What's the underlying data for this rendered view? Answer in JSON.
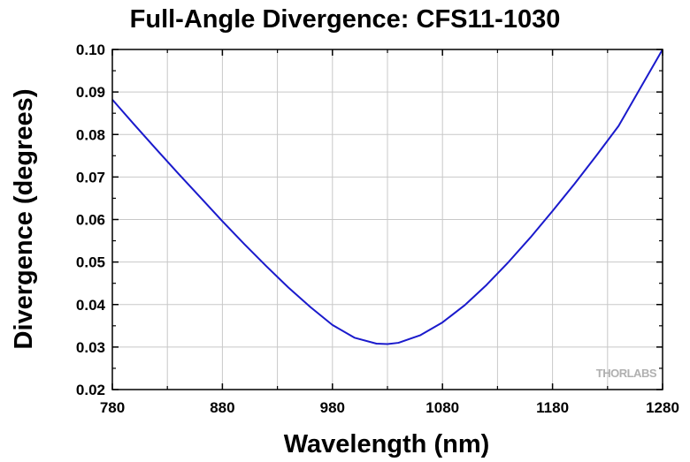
{
  "chart_data": {
    "type": "line",
    "title": "Full-Angle Divergence: CFS11-1030",
    "xlabel": "Wavelength (nm)",
    "ylabel": "Divergence (degrees)",
    "xlim": [
      780,
      1280
    ],
    "ylim": [
      0.02,
      0.1
    ],
    "x_ticks": [
      "780",
      "880",
      "980",
      "1080",
      "1180",
      "1280"
    ],
    "y_ticks": [
      "0.02",
      "0.03",
      "0.04",
      "0.05",
      "0.06",
      "0.07",
      "0.08",
      "0.09",
      "0.10"
    ],
    "grid": true,
    "series": [
      {
        "color": "#1a1acc",
        "x": [
          780,
          800,
          820,
          840,
          860,
          880,
          900,
          920,
          940,
          960,
          980,
          1000,
          1020,
          1030,
          1040,
          1060,
          1080,
          1100,
          1120,
          1140,
          1160,
          1180,
          1200,
          1220,
          1240,
          1260,
          1280
        ],
        "y": [
          0.0882,
          0.0823,
          0.0765,
          0.0708,
          0.0652,
          0.0596,
          0.0542,
          0.049,
          0.044,
          0.0394,
          0.0352,
          0.0322,
          0.0308,
          0.0307,
          0.031,
          0.0328,
          0.0358,
          0.0398,
          0.0446,
          0.05,
          0.0558,
          0.062,
          0.0684,
          0.0751,
          0.082,
          0.091,
          0.1
        ]
      }
    ]
  },
  "watermark": {
    "text": "THORLABS",
    "color": "#b0b0b0"
  }
}
